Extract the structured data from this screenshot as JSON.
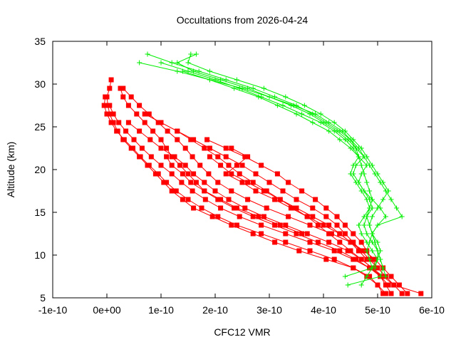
{
  "chart_data": {
    "type": "scatter",
    "title": "Occultations from 2026-04-24",
    "xlabel": "CFC12 VMR",
    "ylabel": "Altitude (km)",
    "xlim": [
      -1e-10,
      6e-10
    ],
    "ylim": [
      5,
      35
    ],
    "x_ticks": [
      -1e-10,
      0,
      1e-10,
      2e-10,
      3e-10,
      4e-10,
      5e-10,
      6e-10
    ],
    "x_tick_labels": [
      "-1e-10",
      "0e+00",
      "1e-10",
      "2e-10",
      "3e-10",
      "4e-10",
      "5e-10",
      "6e-10"
    ],
    "y_ticks": [
      5,
      10,
      15,
      20,
      25,
      30,
      35
    ],
    "y_tick_labels": [
      "5",
      "10",
      "15",
      "20",
      "25",
      "30",
      "35"
    ],
    "grid": false,
    "legend": "none",
    "series": [
      {
        "color": "#ff0000",
        "marker": "square",
        "profiles": [
          {
            "alt": [
              30.5,
              29.5,
              28.5,
              27.5,
              26.5,
              25.5,
              24.5,
              23.5,
              22.5,
              21.5,
              20.5,
              19.5,
              18.5,
              17.5,
              16.5,
              15.5,
              14.5,
              13.5,
              12.5,
              11.5,
              10.5,
              9.5,
              8.5,
              7.5,
              6.5,
              5.5
            ],
            "x": [
              8e-12,
              5e-12,
              0.0,
              2e-12,
              5e-12,
              1.2e-11,
              2e-11,
              3e-11,
              4.5e-11,
              6e-11,
              7.5e-11,
              9e-11,
              1.05e-10,
              1.2e-10,
              1.4e-10,
              1.6e-10,
              1.95e-10,
              2.3e-10,
              2.7e-10,
              3.1e-10,
              3.55e-10,
              4.05e-10,
              4.55e-10,
              4.85e-10,
              5e-10,
              5.1e-10
            ]
          },
          {
            "alt": [
              29.5,
              28.5,
              27.5,
              26.5,
              25.5,
              24.5,
              23.5,
              22.5,
              21.5,
              20.5,
              19.5,
              18.5,
              17.5,
              16.5,
              15.5,
              14.5,
              13.5,
              12.5,
              11.5,
              10.5,
              9.5,
              8.5,
              7.5,
              6.5,
              5.5
            ],
            "x": [
              2.5e-11,
              3e-11,
              4e-11,
              5.5e-11,
              7e-11,
              8.5e-11,
              1e-10,
              1.1e-10,
              1.2e-10,
              1.35e-10,
              1.5e-10,
              1.65e-10,
              1.8e-10,
              2.05e-10,
              2.35e-10,
              2.7e-10,
              3.1e-10,
              3.5e-10,
              3.9e-10,
              4.3e-10,
              4.6e-10,
              4.85e-10,
              5.05e-10,
              5.15e-10,
              5.25e-10
            ]
          },
          {
            "alt": [
              28.5,
              27.5,
              26.5,
              25.5,
              24.5,
              23.5,
              22.5,
              21.5,
              20.5,
              19.5,
              18.5,
              17.5,
              16.5,
              15.5,
              14.5,
              13.5,
              12.5,
              11.5,
              10.5,
              9.5,
              8.5,
              7.5,
              6.5,
              5.5
            ],
            "x": [
              -3e-12,
              -5e-12,
              0.0,
              8e-12,
              1.8e-11,
              3.2e-11,
              4.8e-11,
              6.2e-11,
              7.8e-11,
              9.5e-11,
              1.1e-10,
              1.28e-10,
              1.5e-10,
              1.75e-10,
              2.05e-10,
              2.4e-10,
              2.85e-10,
              3.3e-10,
              3.75e-10,
              4.2e-10,
              4.55e-10,
              4.8e-10,
              5e-10,
              5.15e-10
            ]
          },
          {
            "alt": [
              27.5,
              26.5,
              25.5,
              24.5,
              23.5,
              22.5,
              21.5,
              20.5,
              19.5,
              18.5,
              17.5,
              16.5,
              15.5,
              14.5,
              13.5,
              12.5,
              11.5,
              10.5,
              9.5,
              8.5,
              7.5,
              6.5,
              5.5
            ],
            "x": [
              5e-12,
              1.2e-11,
              2.2e-11,
              3.5e-11,
              5e-11,
              6.5e-11,
              8.2e-11,
              1e-10,
              1.2e-10,
              1.38e-10,
              1.58e-10,
              1.82e-10,
              2.1e-10,
              2.45e-10,
              2.85e-10,
              3.3e-10,
              3.75e-10,
              4.2e-10,
              4.55e-10,
              4.85e-10,
              5.1e-10,
              5.3e-10,
              5.45e-10
            ]
          },
          {
            "alt": [
              29.5,
              28.5,
              27.5,
              26.5,
              25.5,
              24.5,
              23.5,
              22.5,
              21.5,
              20.5,
              19.5,
              18.5,
              17.5,
              16.5,
              15.5,
              14.5,
              13.5,
              12.5,
              11.5,
              10.5,
              9.5,
              8.5,
              7.5,
              6.5,
              5.5
            ],
            "x": [
              3e-11,
              4.5e-11,
              6e-11,
              7.8e-11,
              9.5e-11,
              1.12e-10,
              1.3e-10,
              1.45e-10,
              1.58e-10,
              1.72e-10,
              1.88e-10,
              2.05e-10,
              2.3e-10,
              2.6e-10,
              2.95e-10,
              3.35e-10,
              3.75e-10,
              4.15e-10,
              4.5e-10,
              4.75e-10,
              4.95e-10,
              5.1e-10,
              5.25e-10,
              5.4e-10,
              5.55e-10
            ]
          },
          {
            "alt": [
              26.5,
              25.5,
              24.5,
              23.5,
              22.5,
              21.5,
              20.5,
              19.5,
              18.5,
              17.5,
              16.5,
              15.5,
              14.5,
              13.5,
              12.5,
              11.5,
              10.5,
              9.5,
              8.5,
              7.5,
              6.5,
              5.5
            ],
            "x": [
              7e-11,
              1e-10,
              1.3e-10,
              1.6e-10,
              1.9e-10,
              2.2e-10,
              2.5e-10,
              2.75e-10,
              3e-10,
              3.25e-10,
              3.5e-10,
              3.8e-10,
              4.05e-10,
              4.25e-10,
              4.4e-10,
              4.55e-10,
              4.7e-10,
              4.85e-10,
              5e-10,
              5.15e-10,
              5.3e-10,
              5.8e-10
            ]
          },
          {
            "alt": [
              25.5,
              24.5,
              23.5,
              22.5,
              21.5,
              20.5,
              19.5,
              18.5,
              17.5,
              16.5,
              15.5,
              14.5,
              13.5,
              12.5,
              11.5,
              10.5,
              9.5,
              8.5,
              7.5,
              6.5
            ],
            "x": [
              4e-11,
              6e-11,
              8e-11,
              1e-10,
              1.25e-10,
              1.45e-10,
              1.6e-10,
              1.8e-10,
              2e-10,
              2.25e-10,
              2.55e-10,
              2.9e-10,
              3.3e-10,
              3.7e-10,
              4.1e-10,
              4.45e-10,
              4.7e-10,
              4.9e-10,
              5.05e-10,
              5.2e-10
            ]
          },
          {
            "alt": [
              24.5,
              23.5,
              22.5,
              21.5,
              20.5,
              19.5,
              18.5,
              17.5,
              16.5,
              15.5,
              14.5,
              13.5,
              12.5,
              11.5,
              10.5,
              9.5,
              8.5,
              7.5
            ],
            "x": [
              1.3e-10,
              1.55e-10,
              1.8e-10,
              2.05e-10,
              2.25e-10,
              2.45e-10,
              2.7e-10,
              2.95e-10,
              3.2e-10,
              3.45e-10,
              3.7e-10,
              3.9e-10,
              4.1e-10,
              4.3e-10,
              4.5e-10,
              4.7e-10,
              4.9e-10,
              5.1e-10
            ]
          },
          {
            "alt": [
              23.5,
              22.5,
              21.5,
              20.5,
              19.5,
              18.5,
              17.5,
              16.5,
              15.5,
              14.5,
              13.5,
              12.5,
              11.5,
              10.5,
              9.5,
              8.5
            ],
            "x": [
              1.85e-10,
              2.2e-10,
              2.55e-10,
              2.85e-10,
              3.15e-10,
              3.35e-10,
              3.6e-10,
              3.85e-10,
              4.05e-10,
              4.25e-10,
              4.4e-10,
              4.55e-10,
              4.7e-10,
              4.8e-10,
              4.9e-10,
              5e-10
            ]
          },
          {
            "alt": [
              22.5,
              21.5,
              20.5,
              19.5,
              18.5,
              17.5,
              16.5,
              15.5,
              14.5,
              13.5,
              12.5,
              11.5,
              10.5,
              9.5
            ],
            "x": [
              2.3e-10,
              2.6e-10,
              2.4e-10,
              2.2e-10,
              2.5e-10,
              2.75e-10,
              3.1e-10,
              3.4e-10,
              3.7e-10,
              4e-10,
              4.3e-10,
              4.5e-10,
              4.65e-10,
              4.8e-10
            ]
          },
          {
            "alt": [
              21.5,
              20.5,
              19.5,
              18.5,
              17.5,
              16.5,
              15.5,
              14.5,
              13.5,
              12.5,
              11.5,
              10.5
            ],
            "x": [
              1.9e-10,
              2.1e-10,
              2.3e-10,
              2.6e-10,
              2.9e-10,
              3.2e-10,
              3.5e-10,
              3.8e-10,
              4.1e-10,
              4.3e-10,
              4.5e-10,
              4.7e-10
            ]
          },
          {
            "alt": [
              21.5,
              20.5,
              19.5,
              18.5,
              17.5,
              16.5,
              15.5,
              14.5,
              13.5,
              12.5
            ],
            "x": [
              1.1e-10,
              1.2e-10,
              1.4e-10,
              1.55e-10,
              1.8e-10,
              2.1e-10,
              2.4e-10,
              2.8e-10,
              3.2e-10,
              3.6e-10
            ]
          }
        ]
      },
      {
        "color": "#00ee00",
        "marker": "plus",
        "profiles": [
          {
            "alt": [
              33.5,
              32.5,
              31.5,
              30.5,
              29.5,
              28.5,
              27.5,
              26.5,
              25.5,
              24.5,
              23.5,
              22.5,
              21.5,
              20.5,
              19.5,
              18.5,
              17.5,
              16.5,
              15.5,
              14.5,
              13.5,
              12.5,
              11.5,
              10.5,
              9.5,
              8.5,
              7.5,
              6.5
            ],
            "x": [
              7.5e-11,
              1.2e-10,
              1.7e-10,
              2.2e-10,
              2.7e-10,
              3.1e-10,
              3.5e-10,
              3.8e-10,
              4.05e-10,
              4.3e-10,
              4.5e-10,
              4.6e-10,
              4.65e-10,
              4.7e-10,
              4.75e-10,
              4.8e-10,
              4.85e-10,
              4.9e-10,
              4.85e-10,
              4.8e-10,
              4.85e-10,
              4.9e-10,
              4.95e-10,
              5e-10,
              5e-10,
              4.9e-10,
              4.8e-10,
              4.7e-10
            ]
          },
          {
            "alt": [
              33.5,
              32.5,
              31.5,
              30.5,
              29.5,
              28.5,
              27.5,
              26.5,
              25.5,
              24.5,
              23.5,
              22.5,
              21.5,
              20.5,
              19.5,
              18.5,
              17.5,
              16.5,
              15.5,
              14.5,
              13.5,
              12.5,
              11.5,
              10.5,
              9.5,
              8.5
            ],
            "x": [
              1.55e-10,
              1.5e-10,
              1.9e-10,
              2.4e-10,
              2.9e-10,
              3.3e-10,
              3.65e-10,
              3.95e-10,
              4.2e-10,
              4.4e-10,
              4.55e-10,
              4.7e-10,
              4.8e-10,
              4.9e-10,
              5e-10,
              5.1e-10,
              5.2e-10,
              5.1e-10,
              5e-10,
              4.9e-10,
              4.85e-10,
              4.9e-10,
              5e-10,
              5.05e-10,
              5e-10,
              4.95e-10
            ]
          },
          {
            "alt": [
              32.5,
              31.5,
              30.5,
              29.5,
              28.5,
              27.5,
              26.5,
              25.5,
              24.5,
              23.5,
              22.5,
              21.5,
              20.5,
              19.5,
              18.5,
              17.5,
              16.5,
              15.5,
              14.5,
              13.5,
              12.5,
              11.5,
              10.5,
              9.5,
              8.5,
              7.5
            ],
            "x": [
              6e-11,
              1.3e-10,
              1.9e-10,
              2.5e-10,
              3e-10,
              3.4e-10,
              3.75e-10,
              4e-10,
              4.25e-10,
              4.45e-10,
              4.6e-10,
              4.75e-10,
              4.85e-10,
              4.95e-10,
              5.05e-10,
              5.15e-10,
              5.25e-10,
              5.35e-10,
              5.45e-10,
              5e-10,
              4.9e-10,
              4.85e-10,
              4.8e-10,
              4.85e-10,
              4.9e-10,
              4.4e-10
            ]
          },
          {
            "alt": [
              33.5,
              32.5,
              31.5,
              30.5,
              29.5,
              28.5,
              27.5,
              26.5,
              25.5,
              24.5,
              23.5,
              22.5,
              21.5,
              20.5,
              19.5,
              18.5,
              17.5,
              16.5,
              15.5,
              14.5,
              13.5,
              12.5,
              11.5,
              10.5,
              9.5,
              8.5,
              7.5
            ],
            "x": [
              1.65e-10,
              1.3e-10,
              1.6e-10,
              2.1e-10,
              2.6e-10,
              3e-10,
              3.45e-10,
              3.85e-10,
              4.1e-10,
              4.35e-10,
              4.5e-10,
              4.65e-10,
              4.75e-10,
              4.6e-10,
              4.55e-10,
              4.65e-10,
              4.75e-10,
              4.85e-10,
              4.9e-10,
              4.8e-10,
              4.75e-10,
              4.8e-10,
              4.9e-10,
              5e-10,
              5.05e-10,
              5.1e-10,
              5.15e-10
            ]
          },
          {
            "alt": [
              32.5,
              31.5,
              30.5,
              29.5,
              28.5,
              27.5,
              26.5,
              25.5,
              24.5,
              23.5,
              22.5,
              21.5,
              20.5,
              19.5,
              18.5,
              17.5,
              16.5,
              15.5,
              14.5,
              13.5,
              12.5,
              11.5,
              10.5,
              9.5
            ],
            "x": [
              1e-10,
              1.5e-10,
              2e-10,
              2.45e-10,
              2.85e-10,
              3.25e-10,
              3.6e-10,
              3.95e-10,
              4.2e-10,
              4.4e-10,
              4.55e-10,
              4.65e-10,
              4.55e-10,
              4.5e-10,
              4.6e-10,
              4.7e-10,
              4.8e-10,
              4.85e-10,
              4.75e-10,
              4.65e-10,
              4.7e-10,
              4.8e-10,
              4.9e-10,
              5e-10
            ]
          },
          {
            "alt": [
              31.5,
              30.5,
              29.5,
              28.5,
              27.5,
              26.5,
              25.5,
              24.5,
              23.5,
              22.5,
              21.5,
              20.5,
              19.5,
              18.5,
              17.5,
              16.5,
              15.5,
              14.5,
              13.5,
              12.5,
              11.5,
              10.5,
              9.5,
              8.5,
              7.5,
              6.5
            ],
            "x": [
              1.4e-10,
              1.9e-10,
              2.35e-10,
              2.8e-10,
              3.15e-10,
              3.5e-10,
              3.8e-10,
              4.1e-10,
              4.3e-10,
              4.5e-10,
              4.65e-10,
              4.8e-10,
              4.7e-10,
              4.65e-10,
              4.75e-10,
              4.9e-10,
              5.05e-10,
              5.15e-10,
              5e-10,
              4.9e-10,
              4.95e-10,
              5e-10,
              5.05e-10,
              5.1e-10,
              5.05e-10,
              4.45e-10
            ]
          }
        ]
      }
    ]
  }
}
